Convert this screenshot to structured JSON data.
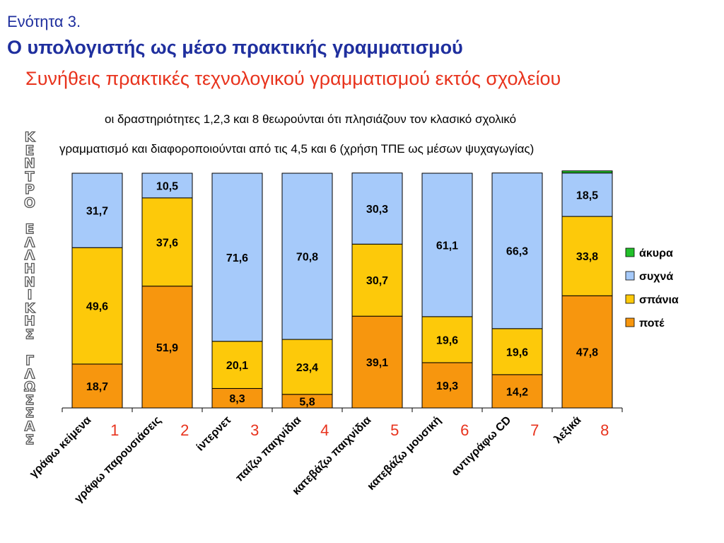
{
  "header": {
    "section": "Ενότητα 3.",
    "title": "Ο υπολογιστής ως μέσο πρακτικής γραμματισμού",
    "subtitle": "Συνήθεις πρακτικές τεχνολογικού γραμματισμού εκτός σχολείου",
    "note_line1": "οι δραστηριότητες 1,2,3 και 8 θεωρούνται ότι πλησιάζουν τον κλασικό σχολικό",
    "note_line2": "γραμματισμό και διαφοροποιούνται από τις 4,5 και 6 (χρήση ΤΠΕ ως μέσων  ψυχαγωγίας)"
  },
  "watermark": {
    "lines": [
      "Κ",
      "Ε",
      "Ν",
      "Τ",
      "Ρ",
      "Ο",
      "",
      "Ε",
      "Λ",
      "Λ",
      "Η",
      "Ν",
      "Ι",
      "Κ",
      "Η",
      "Σ",
      "",
      "Γ",
      "Λ",
      "Ω",
      "Σ",
      "Σ",
      "Α",
      "Σ"
    ]
  },
  "colors": {
    "akyra": "#22c02a",
    "sychna": "#a6cafa",
    "spania": "#fdc90a",
    "pote": "#f7960e",
    "number_label": "#e8331d"
  },
  "chart_data": {
    "type": "bar",
    "stacked": true,
    "categories": [
      "γράφω κείμενα",
      "γράφω παρουσιάσεις",
      "ίντερνετ",
      "παίζω παιχνίδια",
      "κατεβάζω παιχνίδια",
      "κατεβάζω μουσική",
      "αντιγράφω CD",
      "λεξικά"
    ],
    "category_numbers": [
      "1",
      "2",
      "3",
      "4",
      "5",
      "6",
      "7",
      "8"
    ],
    "series": [
      {
        "name": "ποτέ",
        "key": "pote",
        "values": [
          18.7,
          51.9,
          8.3,
          5.8,
          39.1,
          19.3,
          14.2,
          47.8
        ],
        "labels": [
          "18,7",
          "51,9",
          "8,3",
          "5,8",
          "39,1",
          "19,3",
          "14,2",
          "47,8"
        ]
      },
      {
        "name": "σπάνια",
        "key": "spania",
        "values": [
          49.6,
          37.6,
          20.1,
          23.4,
          30.7,
          19.6,
          19.6,
          33.8
        ],
        "labels": [
          "49,6",
          "37,6",
          "20,1",
          "23,4",
          "30,7",
          "19,6",
          "19,6",
          "33,8"
        ]
      },
      {
        "name": "συχνά",
        "key": "sychna",
        "values": [
          31.7,
          10.5,
          71.6,
          70.8,
          30.3,
          61.1,
          66.3,
          18.5
        ],
        "labels": [
          "31,7",
          "10,5",
          "71,6",
          "70,8",
          "30,3",
          "61,1",
          "66,3",
          "18,5"
        ]
      },
      {
        "name": "άκυρα",
        "key": "akyra",
        "values": [
          0,
          0,
          0,
          0,
          0,
          0,
          0,
          0.9
        ],
        "labels": [
          "",
          "",
          "",
          "",
          "",
          "",
          "",
          ""
        ]
      }
    ],
    "legend_order": [
      "άκυρα",
      "συχνά",
      "σπάνια",
      "ποτέ"
    ],
    "legend_position": "right",
    "ylim": [
      0,
      100
    ],
    "grid": false
  }
}
